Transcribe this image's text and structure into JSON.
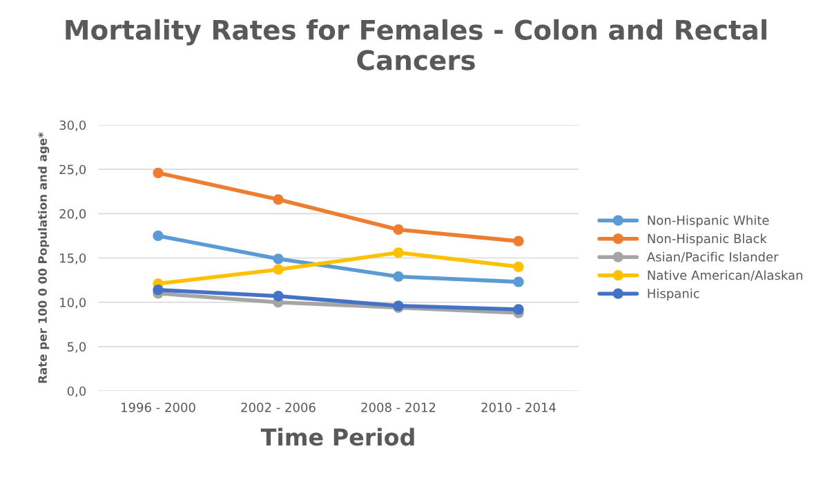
{
  "chart_data": {
    "type": "line",
    "title": "Mortality Rates for Females - Colon and Rectal Cancers",
    "xlabel": "Time Period",
    "ylabel": "Rate per 100 0 00 Population and age*",
    "categories": [
      "1996 - 2000",
      "2002 - 2006",
      "2008 - 2012",
      "2010 - 2014"
    ],
    "series": [
      {
        "name": "Non-Hispanic White",
        "color": "#5b9bd5",
        "values": [
          17.5,
          14.9,
          12.9,
          12.3
        ]
      },
      {
        "name": "Non-Hispanic Black",
        "color": "#ed7d31",
        "values": [
          24.6,
          21.6,
          18.2,
          16.9
        ]
      },
      {
        "name": "Asian/Pacific Islander",
        "color": "#a5a5a5",
        "values": [
          11.0,
          10.0,
          9.4,
          8.8
        ]
      },
      {
        "name": "Native American/Alaskan",
        "color": "#ffc000",
        "values": [
          12.1,
          13.7,
          15.6,
          14.0
        ]
      },
      {
        "name": "Hispanic",
        "color": "#4472c4",
        "values": [
          11.4,
          10.7,
          9.6,
          9.2
        ]
      }
    ],
    "ylim": [
      0,
      30
    ],
    "yticks": [
      {
        "value": 0,
        "label": "0,0"
      },
      {
        "value": 5,
        "label": "5,0"
      },
      {
        "value": 10,
        "label": "10,0"
      },
      {
        "value": 15,
        "label": "15,0"
      },
      {
        "value": 20,
        "label": "20,0"
      },
      {
        "value": 25,
        "label": "25,0"
      },
      {
        "value": 30,
        "label": "30,0"
      }
    ],
    "grid": "y",
    "legend": "right",
    "marker": "circle",
    "line_style": "solid"
  }
}
